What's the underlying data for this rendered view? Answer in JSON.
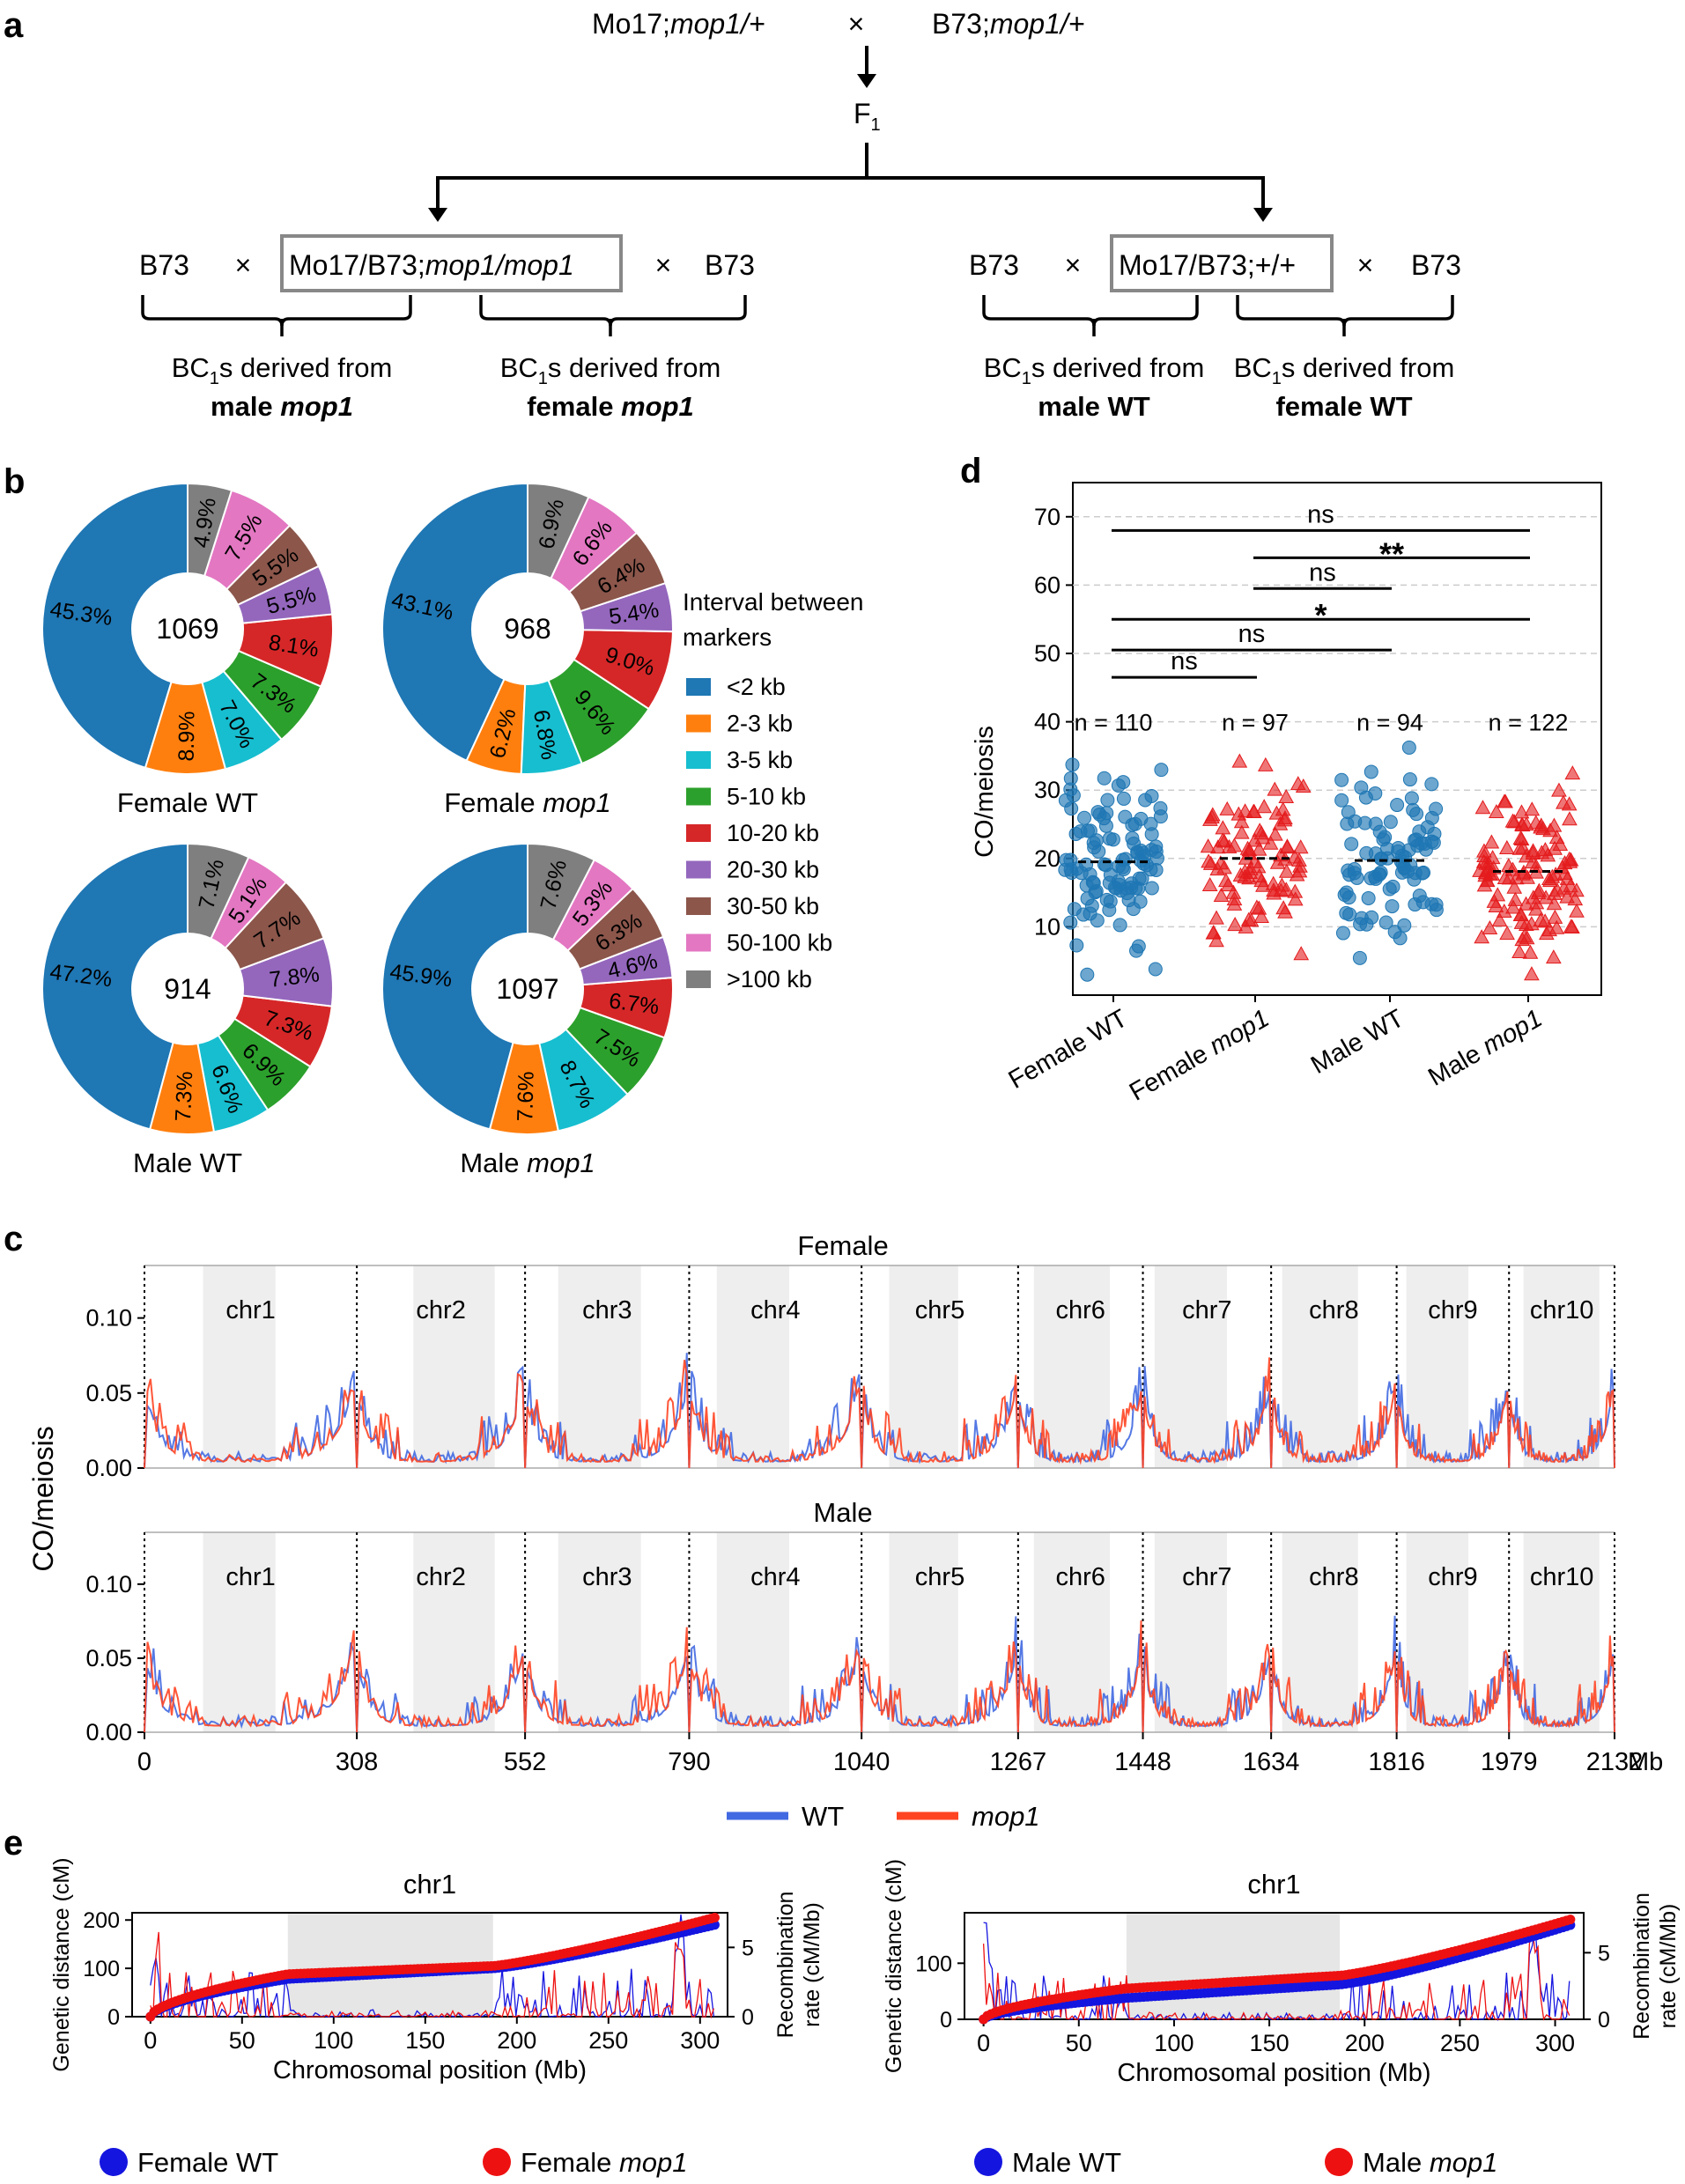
{
  "panels": {
    "a": "a",
    "b": "b",
    "c": "c",
    "d": "d",
    "e": "e"
  },
  "panel_a": {
    "parent_left": "Mo17;",
    "parent_left_geno": "mop1/+",
    "cross_sign": "×",
    "parent_right": "B73;",
    "parent_right_geno": "mop1/+",
    "f1": "F",
    "f1_sub": "1",
    "left_recurrent_1": "B73",
    "left_box_text": "Mo17/B73;",
    "left_box_geno": "mop1/mop1",
    "left_recurrent_2": "B73",
    "right_recurrent_1": "B73",
    "right_box_text": "Mo17/B73;+/+",
    "right_recurrent_2": "B73",
    "bc_prefix": "BC",
    "bc_sub": "1",
    "bc_suffix": "s derived from",
    "groups": [
      {
        "line2_bold": "male ",
        "line2_bold_italic": "mop1"
      },
      {
        "line2_bold": "female ",
        "line2_bold_italic": "mop1"
      },
      {
        "line2_bold": "male WT",
        "line2_bold_italic": ""
      },
      {
        "line2_bold": "female WT",
        "line2_bold_italic": ""
      }
    ]
  },
  "panel_b": {
    "legend_title_1": "Interval between",
    "legend_title_2": "markers",
    "categories": [
      "<2 kb",
      "2-3 kb",
      "3-5 kb",
      "5-10 kb",
      "10-20 kb",
      "20-30 kb",
      "30-50 kb",
      "50-100 kb",
      ">100 kb"
    ],
    "colors": [
      "#1f77b4",
      "#ff7f0e",
      "#17becf",
      "#2ca02c",
      "#d62728",
      "#9467bd",
      "#8c564b",
      "#e377c2",
      "#7f7f7f"
    ],
    "pies": [
      {
        "label": "Female WT",
        "label_plain": "Female WT",
        "label_italic": "",
        "center": "1069",
        "values": [
          45.3,
          8.9,
          7.0,
          7.3,
          8.1,
          5.5,
          5.5,
          7.5,
          4.9
        ],
        "labels": [
          "45.3%",
          "8.9%",
          "7.0%",
          "7.3%",
          "8.1%",
          "5.5%",
          "5.5%",
          "7.5%",
          "4.9%"
        ]
      },
      {
        "label": "Female mop1",
        "label_plain": "Female ",
        "label_italic": "mop1",
        "center": "968",
        "values": [
          43.1,
          6.2,
          6.8,
          9.6,
          9.0,
          5.4,
          6.4,
          6.6,
          6.9
        ],
        "labels": [
          "43.1%",
          "6.2%",
          "6.8%",
          "9.6%",
          "9.0%",
          "5.4%",
          "6.4%",
          "6.6%",
          "6.9%"
        ]
      },
      {
        "label": "Male WT",
        "label_plain": "Male WT",
        "label_italic": "",
        "center": "914",
        "values": [
          47.2,
          7.3,
          6.6,
          6.9,
          7.3,
          7.8,
          7.7,
          5.1,
          7.1
        ],
        "labels": [
          "47.2%",
          "7.3%",
          "6.6%",
          "6.9%",
          "7.3%",
          "7.8%",
          "7.7%",
          "5.1%",
          "7.1%"
        ]
      },
      {
        "label": "Male mop1",
        "label_plain": "Male ",
        "label_italic": "mop1",
        "center": "1097",
        "values": [
          45.9,
          7.6,
          8.7,
          7.5,
          6.7,
          4.6,
          6.3,
          5.3,
          7.6
        ],
        "labels": [
          "45.9%",
          "7.6%",
          "8.7%",
          "7.5%",
          "6.7%",
          "4.6%",
          "6.3%",
          "5.3%",
          "7.6%"
        ]
      }
    ]
  },
  "panel_d": {
    "ylabel": "CO/meiosis",
    "ylim": [
      0,
      75
    ],
    "yticks": [
      "10",
      "20",
      "30",
      "40",
      "50",
      "60",
      "70"
    ],
    "groups": [
      {
        "plain": "Female WT",
        "italic": "",
        "n": "n = 110",
        "median": 19.5,
        "color": "#1f77b4",
        "marker": "circle"
      },
      {
        "plain": "Female ",
        "italic": "mop1",
        "n": "n = 97",
        "median": 20.0,
        "color": "#e41a1c",
        "marker": "triangle"
      },
      {
        "plain": "Male WT",
        "italic": "",
        "n": "n = 94",
        "median": 19.7,
        "color": "#1f77b4",
        "marker": "circle"
      },
      {
        "plain": "Male ",
        "italic": "mop1",
        "n": "n = 122",
        "median": 18.1,
        "color": "#e41a1c",
        "marker": "triangle"
      }
    ],
    "comparisons": [
      {
        "from": 1,
        "to": 4,
        "y": 68,
        "label": "ns"
      },
      {
        "from": 2,
        "to": 4,
        "y": 64,
        "label": "**"
      },
      {
        "from": 2,
        "to": 3,
        "y": 59.5,
        "label": "ns"
      },
      {
        "from": 1,
        "to": 4,
        "y": 55,
        "label": "*"
      },
      {
        "from": 1,
        "to": 3,
        "y": 50.5,
        "label": "ns"
      },
      {
        "from": 1,
        "to": 2,
        "y": 46.5,
        "label": "ns"
      }
    ]
  },
  "panel_c": {
    "ylabel": "CO/meiosis",
    "subplots": [
      {
        "title": "Female"
      },
      {
        "title": "Male"
      }
    ],
    "yticks": [
      "0.00",
      "0.05",
      "0.10"
    ],
    "ylim": [
      0,
      0.135
    ],
    "chromosomes": [
      "chr1",
      "chr2",
      "chr3",
      "chr4",
      "chr5",
      "chr6",
      "chr7",
      "chr8",
      "chr9",
      "chr10"
    ],
    "boundaries": [
      0,
      308,
      552,
      790,
      1040,
      1267,
      1448,
      1634,
      1816,
      1979,
      2132
    ],
    "boundary_labels": [
      "0",
      "308",
      "552",
      "790",
      "1040",
      "1267",
      "1448",
      "1634",
      "1816",
      "1979",
      "2132"
    ],
    "unit": "Mb",
    "legend": [
      {
        "label": "WT",
        "color": "#4169e1",
        "italic": false
      },
      {
        "label": "mop1",
        "color": "#ff4422",
        "italic": true
      }
    ]
  },
  "panel_e": {
    "plots": [
      {
        "title": "chr1",
        "ylabel_left": "Genetic distance (cM)",
        "ylabel_right_1": "Recombination",
        "ylabel_right_2": "rate (cM/Mb)",
        "xlabel": "Chromosomal position (Mb)",
        "yticks_left": [
          "0",
          "100",
          "200"
        ],
        "ylim_left": [
          0,
          215
        ],
        "yticks_right": [
          "0",
          "5"
        ],
        "ylim_right": [
          0,
          7.5
        ],
        "xticks": [
          "0",
          "50",
          "100",
          "150",
          "200",
          "250",
          "300"
        ],
        "xlim": [
          -10,
          315
        ],
        "centromere": [
          75,
          187
        ],
        "legend": [
          {
            "plain": "Female WT",
            "italic": "",
            "color": "#1515e0"
          },
          {
            "plain": "Female ",
            "italic": "mop1",
            "color": "#ee1111"
          }
        ],
        "wt_final": 190,
        "mop1_final": 205
      },
      {
        "title": "chr1",
        "ylabel_left": "Genetic distance (cM)",
        "ylabel_right_1": "Recombination",
        "ylabel_right_2": "rate (cM/Mb)",
        "xlabel": "Chromosomal position (Mb)",
        "yticks_left": [
          "0",
          "100"
        ],
        "ylim_left": [
          0,
          190
        ],
        "yticks_right": [
          "0",
          "5"
        ],
        "ylim_right": [
          0,
          8
        ],
        "xticks": [
          "0",
          "50",
          "100",
          "150",
          "200",
          "250",
          "300"
        ],
        "xlim": [
          -10,
          315
        ],
        "centromere": [
          75,
          187
        ],
        "legend": [
          {
            "plain": "Male WT",
            "italic": "",
            "color": "#1515e0"
          },
          {
            "plain": "Male ",
            "italic": "mop1",
            "color": "#ee1111"
          }
        ],
        "wt_final": 168,
        "mop1_final": 178
      }
    ]
  }
}
